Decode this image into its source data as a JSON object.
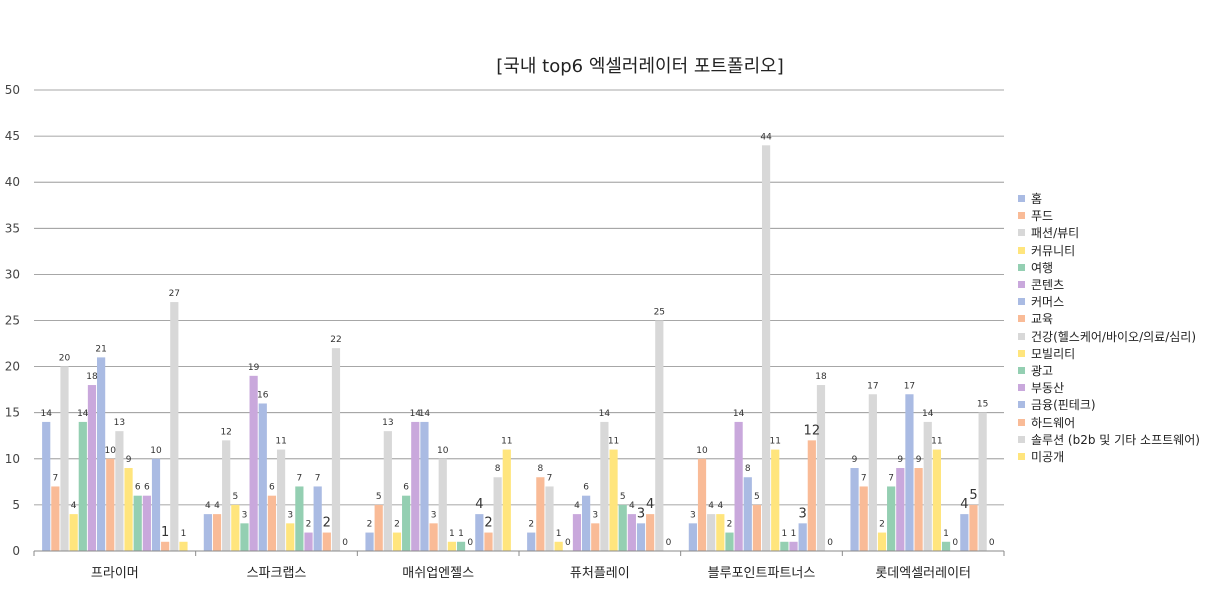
{
  "chart_data": {
    "type": "bar",
    "title": "[국내 top6 엑셀러레이터 포트폴리오]",
    "xlabel": "",
    "ylabel": "",
    "ylim": [
      0,
      50
    ],
    "yticks": [
      0,
      5,
      10,
      15,
      20,
      25,
      30,
      35,
      40,
      45,
      50
    ],
    "grid": true,
    "legend_position": "right",
    "categories": [
      "프라이머",
      "스파크랩스",
      "매쉬업엔젤스",
      "퓨처플레이",
      "블루포인트파트너스",
      "롯데엑셀러레이터"
    ],
    "series": [
      {
        "name": "홈",
        "color": "#aabbe3",
        "values": [
          14,
          4,
          2,
          2,
          3,
          9
        ],
        "labels": [
          "14",
          "4",
          "2",
          "2",
          "3",
          "9"
        ]
      },
      {
        "name": "푸드",
        "color": "#f9bb97",
        "values": [
          7,
          4,
          5,
          8,
          10,
          7
        ],
        "labels": [
          "7",
          "4",
          "5",
          "8",
          "10",
          "7"
        ]
      },
      {
        "name": "패션/뷰티",
        "color": "#d8d8d8",
        "values": [
          20,
          12,
          13,
          7,
          4,
          17
        ],
        "labels": [
          "20",
          "12",
          "13",
          "7",
          "4",
          "17"
        ]
      },
      {
        "name": "커뮤니티",
        "color": "#ffe57d",
        "values": [
          4,
          5,
          2,
          1,
          4,
          2
        ],
        "labels": [
          "4",
          "5",
          "2",
          "1",
          "4",
          "2"
        ]
      },
      {
        "name": "여행",
        "color": "#94cfb2",
        "values": [
          14,
          3,
          6,
          0,
          2,
          7
        ],
        "labels": [
          "14",
          "3",
          "6",
          "0",
          "2",
          "7"
        ]
      },
      {
        "name": "콘텐츠",
        "color": "#c9a8dc",
        "values": [
          18,
          19,
          14,
          4,
          14,
          9
        ],
        "labels": [
          "18",
          "19",
          "14",
          "4",
          "14",
          "9"
        ]
      },
      {
        "name": "커머스",
        "color": "#aabbe3",
        "values": [
          21,
          16,
          14,
          6,
          8,
          17
        ],
        "labels": [
          "21",
          "16",
          "14",
          "6",
          "8",
          "17"
        ]
      },
      {
        "name": "교육",
        "color": "#f9bb97",
        "values": [
          10,
          6,
          3,
          3,
          5,
          9
        ],
        "labels": [
          "10",
          "6",
          "3",
          "3",
          "5",
          "9"
        ]
      },
      {
        "name": "건강(헬스케어/바이오/의료/심리)",
        "color": "#d8d8d8",
        "values": [
          13,
          11,
          10,
          14,
          44,
          14
        ],
        "labels": [
          "13",
          "11",
          "10",
          "14",
          "44",
          "14"
        ]
      },
      {
        "name": "모빌리티",
        "color": "#ffe57d",
        "values": [
          9,
          3,
          1,
          11,
          11,
          11
        ],
        "labels": [
          "9",
          "3",
          "1",
          "11",
          "11",
          "11"
        ]
      },
      {
        "name": "광고",
        "color": "#94cfb2",
        "values": [
          6,
          7,
          1,
          5,
          1,
          1
        ],
        "labels": [
          "6",
          "7",
          "1",
          "5",
          "1",
          "1"
        ]
      },
      {
        "name": "부동산",
        "color": "#c9a8dc",
        "values": [
          6,
          2,
          0,
          4,
          1,
          0
        ],
        "labels": [
          "6",
          "2",
          "0",
          "4",
          "1",
          "0"
        ]
      },
      {
        "name": "금융(핀테크)",
        "color": "#aabbe3",
        "values": [
          10,
          7,
          4,
          3,
          3,
          4
        ],
        "labels": [
          "10",
          "7",
          "4",
          "3",
          "3",
          "4"
        ]
      },
      {
        "name": "하드웨어",
        "color": "#f9bb97",
        "values": [
          1,
          2,
          2,
          4,
          12,
          5
        ],
        "labels": [
          "1",
          "2",
          "2",
          "4",
          "12",
          "5"
        ]
      },
      {
        "name": "솔루션 (b2b 및 기타 소프트웨어)",
        "color": "#d8d8d8",
        "values": [
          27,
          22,
          8,
          25,
          18,
          15
        ],
        "labels": [
          "27",
          "22",
          "8",
          "25",
          "18",
          "15"
        ]
      },
      {
        "name": "미공개",
        "color": "#ffe57d",
        "values": [
          1,
          0,
          11,
          0,
          0,
          0
        ],
        "labels": [
          "1",
          "0",
          "11",
          "0",
          "0",
          "0"
        ]
      }
    ]
  }
}
